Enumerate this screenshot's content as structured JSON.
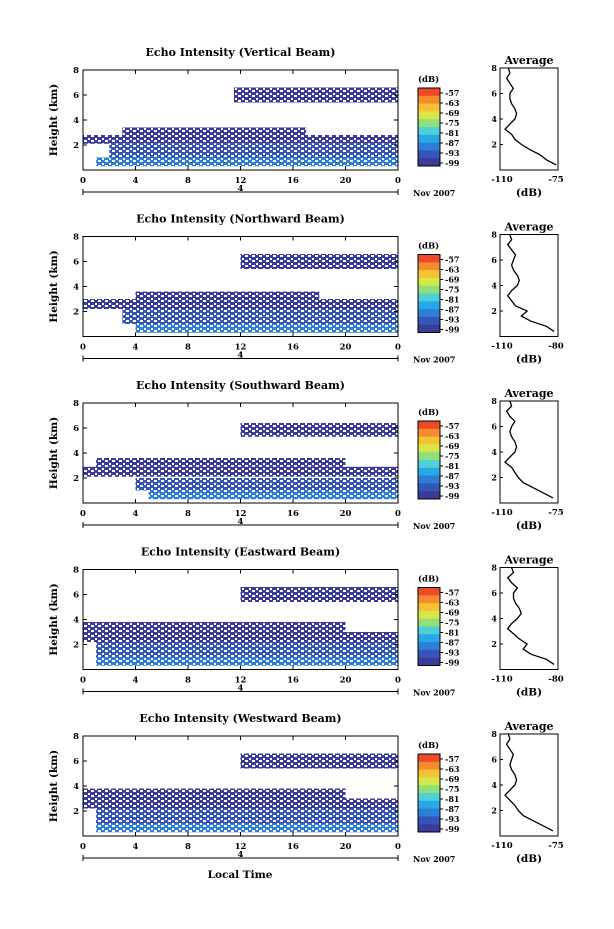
{
  "chart_data": [
    {
      "type": "heatmap",
      "title": "Echo Intensity (Vertical Beam)",
      "ylabel": "Height (km)",
      "ylim": [
        0,
        8
      ],
      "xlim": [
        0,
        24
      ],
      "xticks": [
        "0",
        "4",
        "8",
        "12",
        "16",
        "20",
        "0"
      ],
      "yticks": [
        "2",
        "4",
        "6",
        "8"
      ],
      "date_mark": "4",
      "date_label": "Nov 2007",
      "colorbar": {
        "unit": "(dB)",
        "ticks": [
          "-57",
          "-63",
          "-69",
          "-75",
          "-81",
          "-87",
          "-93",
          "-99"
        ]
      },
      "layers": [
        {
          "y0": 0.3,
          "y1": 1.0,
          "x0": 1.0,
          "x1": 24,
          "value": -90
        },
        {
          "y0": 1.0,
          "y1": 2.1,
          "x0": 2.0,
          "x1": 24,
          "value": -95
        },
        {
          "y0": 2.1,
          "y1": 2.8,
          "x0": 0,
          "x1": 24,
          "value": -97
        },
        {
          "y0": 2.8,
          "y1": 3.4,
          "x0": 3.0,
          "x1": 17,
          "value": -98
        },
        {
          "y0": 5.4,
          "y1": 6.6,
          "x0": 11.5,
          "x1": 24,
          "value": -98
        }
      ],
      "profile": {
        "title": "Average",
        "xlabel": "(dB)",
        "xticks": [
          "-110",
          "-75"
        ],
        "xlim": [
          -110,
          -75
        ],
        "yticks": [
          "2",
          "4",
          "6",
          "8"
        ],
        "heights": [
          0.4,
          0.8,
          1.2,
          1.6,
          2.0,
          2.4,
          2.8,
          3.2,
          3.6,
          4.0,
          4.4,
          4.8,
          5.2,
          5.6,
          6.0,
          6.4,
          6.8,
          7.2,
          7.6,
          8.0
        ],
        "values": [
          -76,
          -82,
          -86,
          -92,
          -97,
          -101,
          -103,
          -107,
          -104,
          -101,
          -100,
          -101,
          -103,
          -104,
          -104,
          -102,
          -104,
          -106,
          -104,
          -105
        ]
      }
    },
    {
      "type": "heatmap",
      "title": "Echo Intensity (Northward Beam)",
      "ylabel": "Height (km)",
      "ylim": [
        0,
        8
      ],
      "xlim": [
        0,
        24
      ],
      "xticks": [
        "0",
        "4",
        "8",
        "12",
        "16",
        "20",
        "0"
      ],
      "yticks": [
        "2",
        "4",
        "6",
        "8"
      ],
      "date_mark": "4",
      "date_label": "Nov 2007",
      "colorbar": {
        "unit": "(dB)",
        "ticks": [
          "-57",
          "-63",
          "-69",
          "-75",
          "-81",
          "-87",
          "-93",
          "-99"
        ]
      },
      "layers": [
        {
          "y0": 0.3,
          "y1": 1.0,
          "x0": 4.0,
          "x1": 24,
          "value": -91
        },
        {
          "y0": 1.0,
          "y1": 2.2,
          "x0": 3.0,
          "x1": 24,
          "value": -96
        },
        {
          "y0": 2.2,
          "y1": 3.0,
          "x0": 0,
          "x1": 24,
          "value": -98
        },
        {
          "y0": 3.0,
          "y1": 3.6,
          "x0": 4.0,
          "x1": 18,
          "value": -98
        },
        {
          "y0": 5.4,
          "y1": 6.6,
          "x0": 12,
          "x1": 24,
          "value": -98
        }
      ],
      "profile": {
        "title": "Average",
        "xlabel": "(dB)",
        "xticks": [
          "-110",
          "-80"
        ],
        "xlim": [
          -110,
          -80
        ],
        "yticks": [
          "2",
          "4",
          "6",
          "8"
        ],
        "heights": [
          0.4,
          0.8,
          1.2,
          1.6,
          2.0,
          2.4,
          2.8,
          3.2,
          3.6,
          4.0,
          4.4,
          4.8,
          5.2,
          5.6,
          6.0,
          6.4,
          6.8,
          7.2,
          7.6,
          8.0
        ],
        "values": [
          -82,
          -86,
          -94,
          -99,
          -96,
          -102,
          -104,
          -106,
          -104,
          -101,
          -100,
          -101,
          -103,
          -104,
          -103,
          -102,
          -104,
          -106,
          -104,
          -105
        ]
      }
    },
    {
      "type": "heatmap",
      "title": "Echo Intensity (Southward Beam)",
      "ylabel": "Height (km)",
      "ylim": [
        0,
        8
      ],
      "xlim": [
        0,
        24
      ],
      "xticks": [
        "0",
        "4",
        "8",
        "12",
        "16",
        "20",
        "0"
      ],
      "yticks": [
        "2",
        "4",
        "6",
        "8"
      ],
      "date_mark": "4",
      "date_label": "Nov 2007",
      "colorbar": {
        "unit": "(dB)",
        "ticks": [
          "-57",
          "-63",
          "-69",
          "-75",
          "-81",
          "-87",
          "-93",
          "-99"
        ]
      },
      "layers": [
        {
          "y0": 0.3,
          "y1": 1.0,
          "x0": 5.0,
          "x1": 24,
          "value": -90
        },
        {
          "y0": 1.0,
          "y1": 2.0,
          "x0": 4.0,
          "x1": 24,
          "value": -96
        },
        {
          "y0": 2.1,
          "y1": 2.9,
          "x0": 0,
          "x1": 24,
          "value": -98
        },
        {
          "y0": 2.9,
          "y1": 3.6,
          "x0": 1.0,
          "x1": 20,
          "value": -98
        },
        {
          "y0": 5.3,
          "y1": 6.4,
          "x0": 12,
          "x1": 24,
          "value": -98
        }
      ],
      "profile": {
        "title": "Average",
        "xlabel": "(dB)",
        "xticks": [
          "-110",
          "-75"
        ],
        "xlim": [
          -110,
          -75
        ],
        "yticks": [
          "2",
          "4",
          "6",
          "8"
        ],
        "heights": [
          0.4,
          0.8,
          1.2,
          1.6,
          2.0,
          2.4,
          2.8,
          3.2,
          3.6,
          4.0,
          4.4,
          4.8,
          5.2,
          5.6,
          6.0,
          6.4,
          6.8,
          7.2,
          7.6,
          8.0
        ],
        "values": [
          -78,
          -84,
          -90,
          -96,
          -99,
          -101,
          -103,
          -107,
          -104,
          -101,
          -100,
          -101,
          -103,
          -104,
          -103,
          -101,
          -104,
          -106,
          -103,
          -104
        ]
      }
    },
    {
      "type": "heatmap",
      "title": "Echo Intensity (Eastward Beam)",
      "ylabel": "Height (km)",
      "ylim": [
        0,
        8
      ],
      "xlim": [
        0,
        24
      ],
      "xticks": [
        "0",
        "4",
        "8",
        "12",
        "16",
        "20",
        "0"
      ],
      "yticks": [
        "2",
        "4",
        "6",
        "8"
      ],
      "date_mark": "4",
      "date_label": "Nov 2007",
      "colorbar": {
        "unit": "(dB)",
        "ticks": [
          "-57",
          "-63",
          "-69",
          "-75",
          "-81",
          "-87",
          "-93",
          "-99"
        ]
      },
      "layers": [
        {
          "y0": 0.3,
          "y1": 1.0,
          "x0": 1.0,
          "x1": 24,
          "value": -91
        },
        {
          "y0": 1.0,
          "y1": 2.2,
          "x0": 1.0,
          "x1": 24,
          "value": -96
        },
        {
          "y0": 2.2,
          "y1": 3.0,
          "x0": 0,
          "x1": 24,
          "value": -98
        },
        {
          "y0": 3.0,
          "y1": 3.8,
          "x0": 0,
          "x1": 20,
          "value": -98
        },
        {
          "y0": 5.4,
          "y1": 6.6,
          "x0": 12,
          "x1": 24,
          "value": -98
        }
      ],
      "profile": {
        "title": "Average",
        "xlabel": "(dB)",
        "xticks": [
          "-110",
          "-80"
        ],
        "xlim": [
          -110,
          -80
        ],
        "yticks": [
          "2",
          "4",
          "6",
          "8"
        ],
        "heights": [
          0.4,
          0.8,
          1.2,
          1.6,
          2.0,
          2.4,
          2.8,
          3.2,
          3.6,
          4.0,
          4.4,
          4.8,
          5.2,
          5.6,
          6.0,
          6.4,
          6.8,
          7.2,
          7.6,
          8.0
        ],
        "values": [
          -82,
          -86,
          -94,
          -98,
          -96,
          -100,
          -103,
          -106,
          -104,
          -101,
          -99,
          -100,
          -102,
          -103,
          -103,
          -101,
          -104,
          -106,
          -103,
          -104
        ]
      }
    },
    {
      "type": "heatmap",
      "title": "Echo Intensity (Westward Beam)",
      "ylabel": "Height (km)",
      "ylim": [
        0,
        8
      ],
      "xlim": [
        0,
        24
      ],
      "xticks": [
        "0",
        "4",
        "8",
        "12",
        "16",
        "20",
        "0"
      ],
      "yticks": [
        "2",
        "4",
        "6",
        "8"
      ],
      "date_mark": "4",
      "date_label": "Nov 2007",
      "colorbar": {
        "unit": "(dB)",
        "ticks": [
          "-57",
          "-63",
          "-69",
          "-75",
          "-81",
          "-87",
          "-93",
          "-99"
        ]
      },
      "layers": [
        {
          "y0": 0.3,
          "y1": 1.0,
          "x0": 1.0,
          "x1": 24,
          "value": -90
        },
        {
          "y0": 1.0,
          "y1": 2.2,
          "x0": 1.0,
          "x1": 24,
          "value": -96
        },
        {
          "y0": 2.2,
          "y1": 3.0,
          "x0": 0,
          "x1": 24,
          "value": -98
        },
        {
          "y0": 3.0,
          "y1": 3.8,
          "x0": 0,
          "x1": 20,
          "value": -98
        },
        {
          "y0": 5.4,
          "y1": 6.6,
          "x0": 12,
          "x1": 24,
          "value": -98
        }
      ],
      "profile": {
        "title": "Average",
        "xlabel": "(dB)",
        "xticks": [
          "-110",
          "-75"
        ],
        "xlim": [
          -110,
          -75
        ],
        "yticks": [
          "2",
          "4",
          "6",
          "8"
        ],
        "heights": [
          0.4,
          0.8,
          1.2,
          1.6,
          2.0,
          2.4,
          2.8,
          3.2,
          3.6,
          4.0,
          4.4,
          4.8,
          5.2,
          5.6,
          6.0,
          6.4,
          6.8,
          7.2,
          7.6,
          8.0
        ],
        "values": [
          -78,
          -84,
          -90,
          -96,
          -99,
          -101,
          -104,
          -107,
          -104,
          -101,
          -100,
          -101,
          -103,
          -104,
          -103,
          -102,
          -104,
          -106,
          -104,
          -105
        ]
      }
    }
  ],
  "bottom_xlabel": "Local Time",
  "colorscale": [
    "#3b3b9a",
    "#3556b8",
    "#2f7ed6",
    "#27a9e8",
    "#4fd0d6",
    "#8fe07a",
    "#d8e64a",
    "#f4c233",
    "#f58a2e",
    "#ee4a2a"
  ]
}
